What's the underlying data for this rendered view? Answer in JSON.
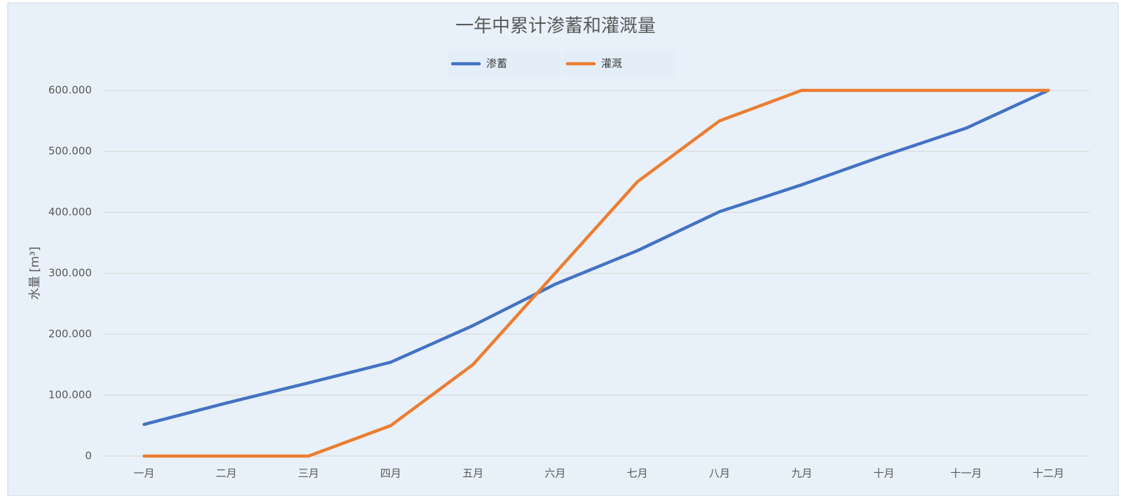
{
  "chart_data": {
    "type": "line",
    "title": "一年中累计渗蓄和灌溉量",
    "y_label": "水量 [m³]",
    "categories": [
      "一月",
      "二月",
      "三月",
      "四月",
      "五月",
      "六月",
      "七月",
      "八月",
      "九月",
      "十月",
      "十一月",
      "十二月"
    ],
    "series": [
      {
        "name": "渗蓄",
        "color": "#4472c4",
        "values": [
          52,
          87,
          120,
          154,
          214,
          282,
          337,
          401,
          445,
          493,
          538,
          600
        ]
      },
      {
        "name": "灌溉",
        "color": "#ed7d31",
        "values": [
          0,
          0,
          0,
          50,
          150,
          300,
          450,
          550,
          600,
          600,
          600,
          600
        ]
      }
    ],
    "ylim": [
      0,
      600
    ],
    "yticks": [
      0,
      {
        "value": 100,
        "label": "100.000"
      },
      {
        "value": 200,
        "label": "200.000"
      },
      {
        "value": 300,
        "label": "300.000"
      },
      {
        "value": 400,
        "label": "400.000"
      },
      {
        "value": 500,
        "label": "500.000"
      },
      {
        "value": 600,
        "label": "600.000"
      }
    ],
    "grid": true,
    "legend": "top"
  }
}
